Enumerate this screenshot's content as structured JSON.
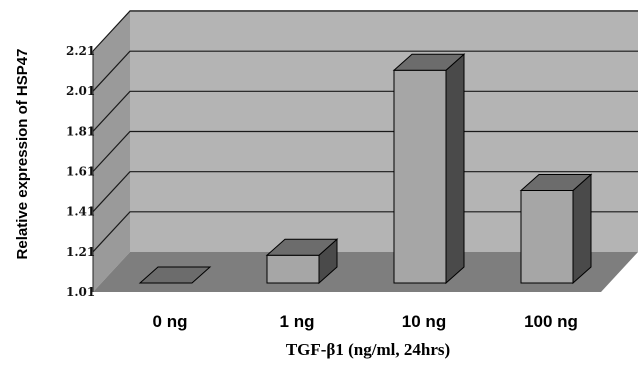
{
  "chart_data": {
    "type": "bar",
    "title": "",
    "ylabel": "Relative expression of HSP47",
    "xlabel": "TGF-β1 (ng/ml, 24hrs)",
    "categories": [
      "0 ng",
      "1 ng",
      "10 ng",
      "100 ng"
    ],
    "values": [
      1.01,
      1.16,
      2.16,
      1.51
    ],
    "yticks": [
      "1.01",
      "1.21",
      "1.41",
      "1.61",
      "1.81",
      "2.01",
      "2.21"
    ],
    "ylim": [
      1.01,
      2.21
    ],
    "grid": true,
    "style": "3d",
    "colors": {
      "wall": "#b4b4b4",
      "side_wall": "#9a9a9a",
      "floor": "#7e7e7e",
      "bar_front": "#a6a6a6",
      "bar_top": "#6c6c6c",
      "bar_side": "#4a4a4a"
    }
  }
}
